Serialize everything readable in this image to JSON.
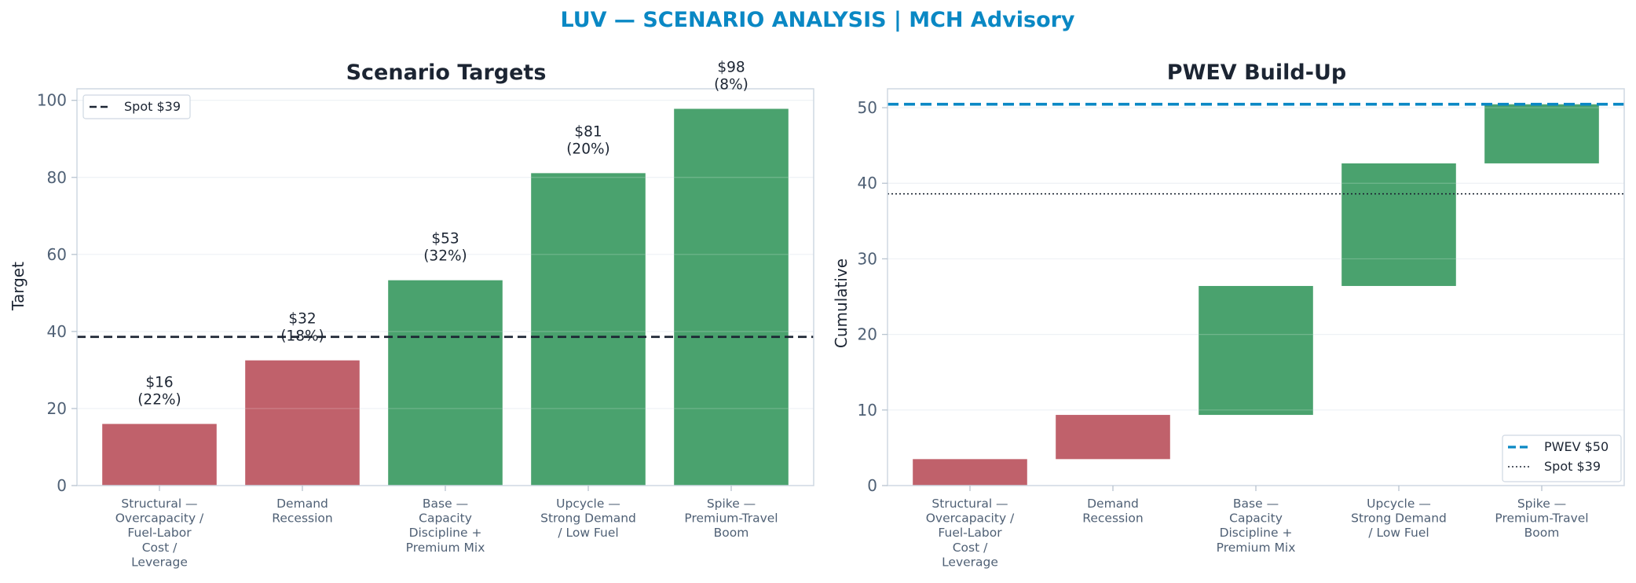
{
  "title": "LUV — SCENARIO ANALYSIS | MCH Advisory",
  "colors": {
    "title": "#0a88c4",
    "negative": "#c0616b",
    "positive": "#4aa26e",
    "spot": "#1c2533",
    "pwev": "#0a88c4"
  },
  "chart_data": [
    {
      "type": "bar",
      "title": "Scenario Targets",
      "xlabel": "",
      "ylabel": "Target",
      "ylim": [
        0,
        103
      ],
      "yticks": [
        0,
        20,
        40,
        60,
        80,
        100
      ],
      "grid": true,
      "categories": [
        [
          "Structural —",
          "Overcapacity /",
          "Fuel-Labor",
          "Cost /",
          "Leverage"
        ],
        [
          "Demand",
          "Recession"
        ],
        [
          "Base —",
          "Capacity",
          "Discipline +",
          "Premium Mix"
        ],
        [
          "Upcycle —",
          "Strong Demand",
          "/ Low Fuel"
        ],
        [
          "Spike —",
          "Premium-Travel",
          "Boom"
        ]
      ],
      "values": [
        16,
        32.5,
        53.3,
        81.1,
        97.8
      ],
      "probabilities": [
        22,
        18,
        32,
        20,
        8
      ],
      "data_labels": [
        [
          "$16",
          "(22%)"
        ],
        [
          "$32",
          "(18%)"
        ],
        [
          "$53",
          "(32%)"
        ],
        [
          "$81",
          "(20%)"
        ],
        [
          "$98",
          "(8%)"
        ]
      ],
      "bar_colors": [
        "#c0616b",
        "#c0616b",
        "#4aa26e",
        "#4aa26e",
        "#4aa26e"
      ],
      "reference_line": {
        "value": 38.6,
        "label": "Spot $39",
        "style": "dashed"
      },
      "legend": {
        "position": "top-left",
        "entries": [
          "Spot $39"
        ]
      }
    },
    {
      "type": "bar",
      "subtype": "waterfall",
      "title": "PWEV Build-Up",
      "xlabel": "",
      "ylabel": "Cumulative",
      "ylim": [
        0,
        52.5
      ],
      "yticks": [
        0,
        10,
        20,
        30,
        40,
        50
      ],
      "grid": true,
      "categories": [
        [
          "Structural —",
          "Overcapacity /",
          "Fuel-Labor",
          "Cost /",
          "Leverage"
        ],
        [
          "Demand",
          "Recession"
        ],
        [
          "Base —",
          "Capacity",
          "Discipline +",
          "Premium Mix"
        ],
        [
          "Upcycle —",
          "Strong Demand",
          "/ Low Fuel"
        ],
        [
          "Spike —",
          "Premium-Travel",
          "Boom"
        ]
      ],
      "contributions": [
        3.5,
        5.85,
        17.06,
        16.22,
        7.82
      ],
      "cumulative": [
        3.5,
        9.35,
        26.41,
        42.63,
        50.45
      ],
      "bar_colors": [
        "#c0616b",
        "#c0616b",
        "#4aa26e",
        "#4aa26e",
        "#4aa26e"
      ],
      "reference_lines": [
        {
          "value": 50.45,
          "label": "PWEV $50",
          "style": "dashed"
        },
        {
          "value": 38.6,
          "label": "Spot $39",
          "style": "dotted"
        }
      ],
      "legend": {
        "position": "bottom-right",
        "entries": [
          "PWEV $50",
          "Spot $39"
        ]
      }
    }
  ]
}
